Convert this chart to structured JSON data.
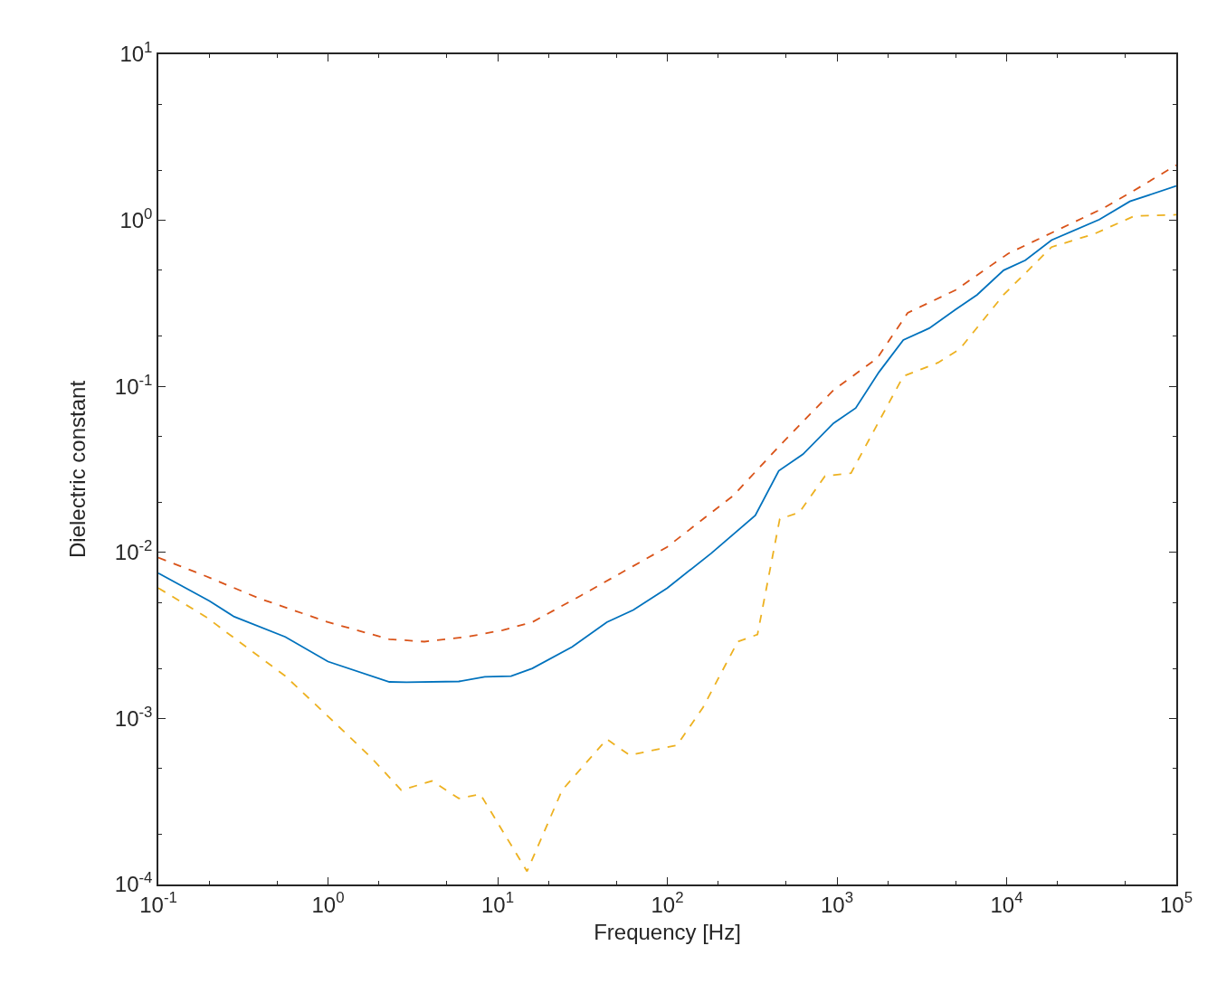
{
  "chart_data": {
    "type": "line",
    "xlabel": "Frequency [Hz]",
    "ylabel": "Dielectric constant",
    "log": "xy",
    "xlim": [
      0.1,
      100000
    ],
    "ylim": [
      0.0001,
      10
    ],
    "xticks": [
      {
        "value": 0.1,
        "label": "10$^{-1}$"
      },
      {
        "value": 1,
        "label": "10$^{0}$"
      },
      {
        "value": 10,
        "label": "10$^{1}$"
      },
      {
        "value": 100,
        "label": "10$^{2}$"
      },
      {
        "value": 1000,
        "label": "10$^{3}$"
      },
      {
        "value": 10000,
        "label": "10$^{4}$"
      },
      {
        "value": 100000,
        "label": "10$^{5}$"
      }
    ],
    "yticks": [
      {
        "value": 0.0001,
        "label": "10$^{-4}$"
      },
      {
        "value": 0.001,
        "label": "10$^{-3}$"
      },
      {
        "value": 0.01,
        "label": "10$^{-2}$"
      },
      {
        "value": 0.1,
        "label": "10$^{-1}$"
      },
      {
        "value": 1,
        "label": "10$^{0}$"
      },
      {
        "value": 10,
        "label": "10$^{1}$"
      }
    ],
    "series": [
      {
        "color": "#0072bd",
        "line_style": "solid",
        "x": [
          0.1,
          0.2,
          0.28,
          0.56,
          1,
          2.3,
          2.9,
          5.9,
          8.4,
          12,
          16,
          27.5,
          44,
          63,
          100,
          182,
          330,
          454,
          630,
          955,
          1290,
          1770,
          2460,
          3500,
          5000,
          6700,
          9600,
          12900,
          18400,
          35200,
          53300,
          100000
        ],
        "values": [
          0.0075,
          0.0051,
          0.0041,
          0.0031,
          0.0022,
          0.00166,
          0.00165,
          0.00167,
          0.00178,
          0.0018,
          0.002,
          0.0027,
          0.0038,
          0.0045,
          0.0061,
          0.0099,
          0.0167,
          0.031,
          0.039,
          0.06,
          0.074,
          0.122,
          0.19,
          0.224,
          0.29,
          0.356,
          0.5,
          0.575,
          0.76,
          1.01,
          1.3,
          1.61
        ]
      },
      {
        "color": "#d95319",
        "line_style": "dashed",
        "x": [
          0.1,
          0.19,
          0.39,
          1,
          2.3,
          3.7,
          6.6,
          10.7,
          16,
          31,
          100,
          245,
          470,
          955,
          1730,
          2610,
          5000,
          10200,
          18400,
          37000,
          60000,
          100000
        ],
        "values": [
          0.0093,
          0.0072,
          0.0053,
          0.0038,
          0.003,
          0.0029,
          0.0031,
          0.0034,
          0.0038,
          0.0055,
          0.0108,
          0.022,
          0.045,
          0.095,
          0.148,
          0.277,
          0.38,
          0.63,
          0.84,
          1.18,
          1.57,
          2.15
        ]
      },
      {
        "color": "#edb120",
        "line_style": "dashed",
        "x": [
          0.1,
          0.19,
          0.56,
          1,
          1.8,
          2.7,
          4.1,
          5.9,
          7.9,
          14.9,
          24,
          44,
          60,
          114,
          162,
          260,
          340,
          460,
          600,
          850,
          1210,
          2460,
          3950,
          5300,
          9600,
          18400,
          33000,
          56500,
          100000
        ],
        "values": [
          0.0061,
          0.0041,
          0.0018,
          0.00103,
          0.00058,
          0.00037,
          0.00042,
          0.00033,
          0.00035,
          0.00012,
          0.00037,
          0.00075,
          0.0006,
          0.00069,
          0.00116,
          0.0029,
          0.0032,
          0.0159,
          0.0174,
          0.0288,
          0.03,
          0.115,
          0.139,
          0.168,
          0.356,
          0.69,
          0.83,
          1.06,
          1.08
        ]
      }
    ]
  }
}
